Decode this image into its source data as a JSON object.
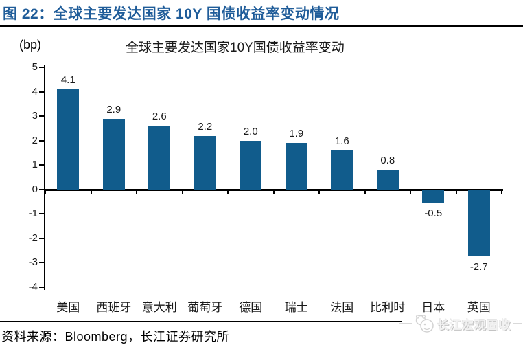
{
  "header": {
    "title": "图 22：全球主要发达国家 10Y 国债收益率变动情况"
  },
  "chart_data": {
    "type": "bar",
    "title": "全球主要发达国家10Y国债收益率变动",
    "ylabel": "(bp)",
    "xlabel": "",
    "categories": [
      "美国",
      "西班牙",
      "意大利",
      "葡萄牙",
      "德国",
      "瑞士",
      "法国",
      "比利时",
      "日本",
      "英国"
    ],
    "values": [
      4.1,
      2.9,
      2.6,
      2.2,
      2.0,
      1.9,
      1.6,
      0.8,
      -0.5,
      -2.7
    ],
    "value_labels": [
      "4.1",
      "2.9",
      "2.6",
      "2.2",
      "2.0",
      "1.9",
      "1.6",
      "0.8",
      "-0.5",
      "-2.7"
    ],
    "ylim": [
      -4,
      5
    ],
    "yticks": [
      5,
      4,
      3,
      2,
      1,
      0,
      -1,
      -2,
      -3,
      -4
    ],
    "grid": false,
    "legend": "none",
    "bar_color": "#115C8C"
  },
  "footer": {
    "source": "资料来源：Bloomberg，长江证券研究所"
  },
  "watermark": {
    "label": "长江宏观固收",
    "icon": "panda-chat-logo-icon"
  },
  "colors": {
    "header_text": "#1F5C99",
    "bar": "#115C8C",
    "axis": "#000000",
    "watermark_gray": "#D9D9D9"
  }
}
